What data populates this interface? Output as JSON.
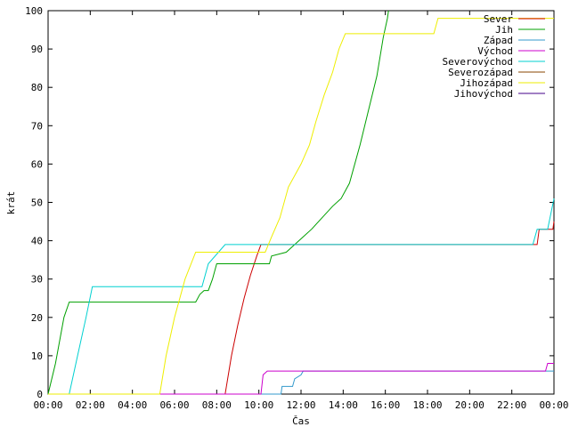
{
  "chart_data": {
    "type": "line",
    "xlabel": "Čas",
    "ylabel": "krát",
    "xlim": [
      0,
      24
    ],
    "ylim": [
      0,
      100
    ],
    "x_ticks": [
      {
        "value": 0,
        "label": "00:00"
      },
      {
        "value": 2,
        "label": "02:00"
      },
      {
        "value": 4,
        "label": "04:00"
      },
      {
        "value": 6,
        "label": "06:00"
      },
      {
        "value": 8,
        "label": "08:00"
      },
      {
        "value": 10,
        "label": "10:00"
      },
      {
        "value": 12,
        "label": "12:00"
      },
      {
        "value": 14,
        "label": "14:00"
      },
      {
        "value": 16,
        "label": "16:00"
      },
      {
        "value": 18,
        "label": "18:00"
      },
      {
        "value": 20,
        "label": "20:00"
      },
      {
        "value": 22,
        "label": "22:00"
      },
      {
        "value": 24,
        "label": "00:00"
      }
    ],
    "y_ticks": [
      0,
      10,
      20,
      30,
      40,
      50,
      60,
      70,
      80,
      90,
      100
    ],
    "legend_position": "top-right",
    "grid": false,
    "series": [
      {
        "name": "Sever",
        "color": "#cc0000",
        "points": [
          [
            0,
            0
          ],
          [
            8.4,
            0
          ],
          [
            8.7,
            10
          ],
          [
            9.0,
            18
          ],
          [
            9.3,
            25
          ],
          [
            9.6,
            31
          ],
          [
            9.9,
            36
          ],
          [
            10.1,
            39
          ],
          [
            12,
            39
          ],
          [
            23.2,
            39
          ],
          [
            23.3,
            43
          ],
          [
            23.95,
            43
          ],
          [
            24,
            45
          ]
        ]
      },
      {
        "name": "Jih",
        "color": "#00a000",
        "points": [
          [
            0,
            0
          ],
          [
            0.35,
            8
          ],
          [
            0.75,
            20
          ],
          [
            1.0,
            24
          ],
          [
            7.0,
            24
          ],
          [
            7.2,
            26
          ],
          [
            7.4,
            27
          ],
          [
            7.6,
            27
          ],
          [
            7.8,
            30
          ],
          [
            8.0,
            34
          ],
          [
            10.5,
            34
          ],
          [
            10.6,
            36
          ],
          [
            11.3,
            37
          ],
          [
            11.7,
            39
          ],
          [
            12.1,
            41
          ],
          [
            12.5,
            43
          ],
          [
            13,
            46
          ],
          [
            13.5,
            49
          ],
          [
            13.9,
            51
          ],
          [
            14.3,
            55
          ],
          [
            14.8,
            65
          ],
          [
            15.2,
            74
          ],
          [
            15.6,
            83
          ],
          [
            15.9,
            93
          ],
          [
            16.1,
            98
          ],
          [
            16.15,
            100
          ]
        ]
      },
      {
        "name": "Západ",
        "color": "#3399cc",
        "points": [
          [
            0,
            0
          ],
          [
            11.05,
            0
          ],
          [
            11.1,
            2
          ],
          [
            11.6,
            2
          ],
          [
            11.7,
            4
          ],
          [
            12.0,
            5
          ],
          [
            12.1,
            6
          ],
          [
            24,
            6
          ]
        ]
      },
      {
        "name": "Východ",
        "color": "#cc00cc",
        "points": [
          [
            0,
            0
          ],
          [
            10.1,
            0
          ],
          [
            10.2,
            5
          ],
          [
            10.4,
            6
          ],
          [
            23.6,
            6
          ],
          [
            23.7,
            8
          ],
          [
            24,
            8
          ]
        ]
      },
      {
        "name": "Severovýchod",
        "color": "#00d0d0",
        "points": [
          [
            0,
            0
          ],
          [
            1.0,
            0
          ],
          [
            1.4,
            10
          ],
          [
            1.8,
            20
          ],
          [
            2.1,
            28
          ],
          [
            6.0,
            28
          ],
          [
            6.2,
            28
          ],
          [
            7.3,
            28
          ],
          [
            7.6,
            34
          ],
          [
            8.4,
            39
          ],
          [
            23.0,
            39
          ],
          [
            23.2,
            43
          ],
          [
            23.7,
            43
          ],
          [
            24,
            51
          ]
        ]
      },
      {
        "name": "Severozápad",
        "color": "#884400",
        "points": []
      },
      {
        "name": "Jihozápad",
        "color": "#eeee00",
        "points": [
          [
            0,
            0
          ],
          [
            5.3,
            0
          ],
          [
            5.6,
            10
          ],
          [
            6.0,
            20
          ],
          [
            6.5,
            30
          ],
          [
            7.0,
            37
          ],
          [
            10.3,
            37
          ],
          [
            10.6,
            41
          ],
          [
            11.0,
            46
          ],
          [
            11.4,
            54
          ],
          [
            12.0,
            60
          ],
          [
            12.4,
            65
          ],
          [
            12.7,
            71
          ],
          [
            13.1,
            78
          ],
          [
            13.5,
            84
          ],
          [
            13.8,
            90
          ],
          [
            14.1,
            94
          ],
          [
            18.3,
            94
          ],
          [
            18.5,
            98
          ],
          [
            24,
            98
          ]
        ]
      },
      {
        "name": "Jihovýchod",
        "color": "#440088",
        "points": []
      }
    ]
  }
}
